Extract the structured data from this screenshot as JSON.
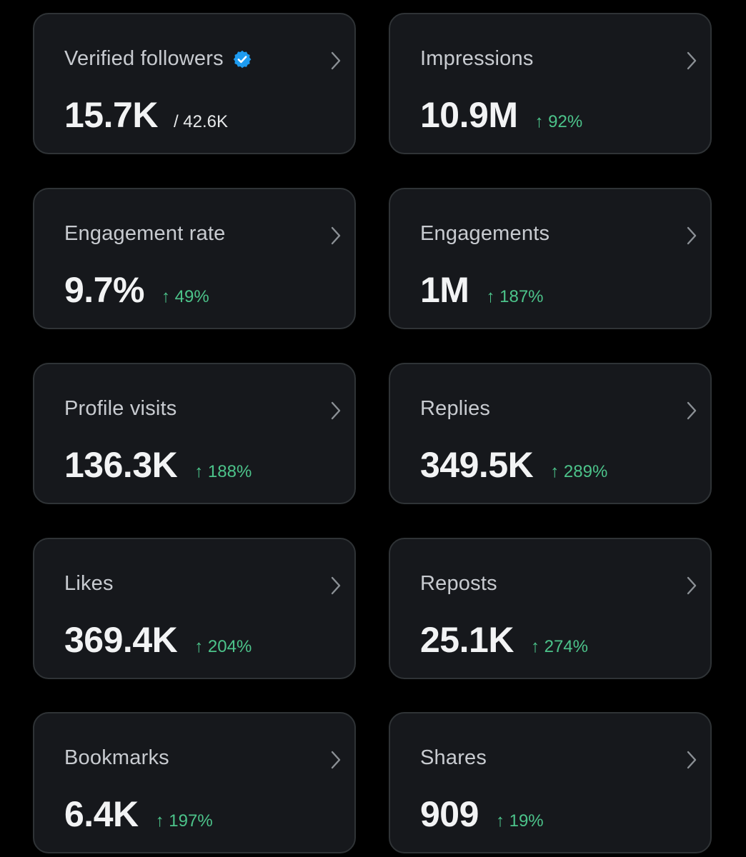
{
  "colors": {
    "background": "#000000",
    "card": "#16181c",
    "card_border": "#2f3336",
    "positive": "#4cc38a",
    "verified": "#1d9bf0"
  },
  "cards": [
    {
      "title": "Verified followers",
      "value": "15.7K",
      "total": "/ 42.6K",
      "icon": "verified-badge-icon"
    },
    {
      "title": "Impressions",
      "value": "10.9M",
      "change": "↑ 92%"
    },
    {
      "title": "Engagement rate",
      "value": "9.7%",
      "change": "↑ 49%"
    },
    {
      "title": "Engagements",
      "value": "1M",
      "change": "↑ 187%"
    },
    {
      "title": "Profile visits",
      "value": "136.3K",
      "change": "↑ 188%"
    },
    {
      "title": "Replies",
      "value": "349.5K",
      "change": "↑ 289%"
    },
    {
      "title": "Likes",
      "value": "369.4K",
      "change": "↑ 204%"
    },
    {
      "title": "Reposts",
      "value": "25.1K",
      "change": "↑ 274%"
    },
    {
      "title": "Bookmarks",
      "value": "6.4K",
      "change": "↑ 197%"
    },
    {
      "title": "Shares",
      "value": "909",
      "change": "↑ 19%"
    }
  ]
}
